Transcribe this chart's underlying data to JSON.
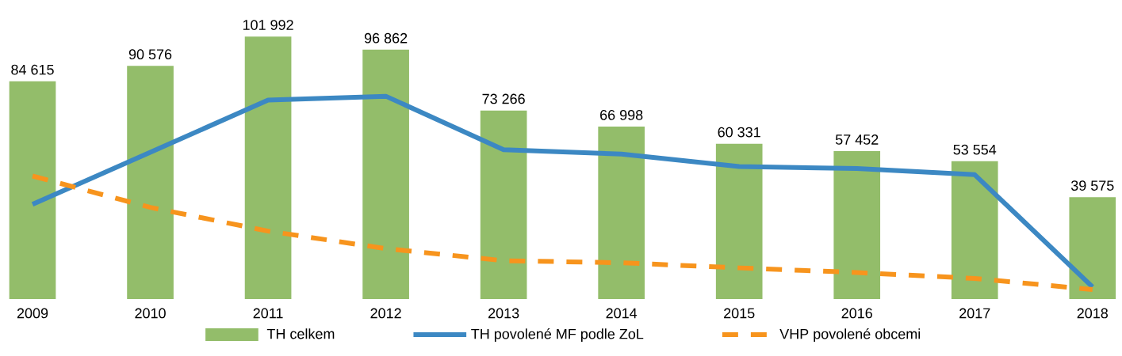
{
  "chart_data": {
    "type": "bar",
    "categories": [
      "2009",
      "2010",
      "2011",
      "2012",
      "2013",
      "2014",
      "2015",
      "2016",
      "2017",
      "2018"
    ],
    "series": [
      {
        "name": "TH celkem",
        "color": "#93bd6a",
        "values": [
          84615,
          90576,
          101992,
          96862,
          73266,
          66998,
          60331,
          57452,
          53554,
          39575
        ],
        "value_labels": [
          "84 615",
          "90 576",
          "101 992",
          "96 862",
          "73 266",
          "66 998",
          "60 331",
          "57 452",
          "53 554",
          "39 575"
        ]
      },
      {
        "name": "TH povolené MF podle ZoL",
        "type": "line",
        "color": "#3c88c3",
        "line_style": "solid",
        "values": [
          36800,
          57000,
          77300,
          78800,
          58000,
          56300,
          51500,
          50700,
          48300,
          4700
        ]
      },
      {
        "name": "VHP povolené obcemi",
        "type": "line",
        "color": "#f7941d",
        "line_style": "dashed",
        "values": [
          47800,
          35600,
          26400,
          19600,
          14900,
          14100,
          12100,
          10300,
          8000,
          3700
        ]
      }
    ],
    "ylim": [
      0,
      101992
    ],
    "tick_labels": "x",
    "legend": "bottom"
  }
}
